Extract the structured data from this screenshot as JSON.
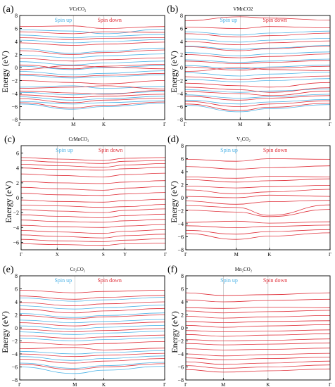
{
  "figure": {
    "ylabel": "Energy (eV)",
    "colors": {
      "spin_up": "#4db3e6",
      "spin_down": "#e0303a",
      "axis": "#000000",
      "kline": "#b0b0b0"
    }
  },
  "chart_data": [
    {
      "type": "line",
      "panel_label": "(a)",
      "title": "VCrCO₂",
      "ylabel": "Energy (eV)",
      "ylim": [
        -8,
        8
      ],
      "yticks": [
        8,
        6,
        4,
        2,
        0,
        -2,
        -4,
        -6,
        -8
      ],
      "kpath": [
        "Γ",
        "M",
        "K",
        "Γ"
      ],
      "kpos": [
        0,
        0.37,
        0.58,
        1
      ],
      "series": [
        {
          "name": "Spin up",
          "color": "#4db3e6",
          "bands": [
            [
              5.8,
              5.6,
              5.2,
              5.9
            ],
            [
              5.0,
              4.6,
              4.8,
              5.1
            ],
            [
              4.2,
              3.8,
              4.0,
              4.3
            ],
            [
              2.9,
              2.2,
              2.5,
              3.0
            ],
            [
              1.9,
              1.5,
              1.8,
              2.1
            ],
            [
              0.9,
              0.4,
              0.7,
              1.0
            ],
            [
              0.2,
              -0.3,
              0.0,
              0.3
            ],
            [
              -0.6,
              -1.1,
              -0.9,
              -0.5
            ],
            [
              -1.2,
              -1.6,
              -1.4,
              -1.1
            ],
            [
              -3.0,
              -2.8,
              -3.2,
              -2.9
            ],
            [
              -3.8,
              -4.2,
              -4.0,
              -3.7
            ],
            [
              -4.5,
              -5.0,
              -4.8,
              -4.4
            ],
            [
              -5.2,
              -5.6,
              -5.4,
              -5.1
            ],
            [
              -5.6,
              -6.4,
              -6.0,
              -5.5
            ]
          ]
        },
        {
          "name": "Spin down",
          "color": "#e0303a",
          "bands": [
            [
              6.3,
              6.4,
              6.0,
              6.3
            ],
            [
              5.5,
              5.2,
              5.5,
              5.4
            ],
            [
              4.6,
              4.3,
              4.5,
              4.6
            ],
            [
              3.8,
              3.4,
              3.6,
              3.9
            ],
            [
              2.6,
              2.0,
              2.3,
              2.7
            ],
            [
              1.4,
              1.0,
              1.2,
              1.5
            ],
            [
              0.4,
              -0.2,
              0.2,
              0.5
            ],
            [
              -0.3,
              0.3,
              0.1,
              -0.2
            ],
            [
              -1.0,
              -1.4,
              -1.2,
              -0.9
            ],
            [
              -2.0,
              -2.3,
              -2.5,
              -2.0
            ],
            [
              -3.2,
              -3.0,
              -2.8,
              -3.3
            ],
            [
              -3.6,
              -3.9,
              -4.1,
              -3.5
            ],
            [
              -4.2,
              -4.6,
              -4.4,
              -4.1
            ],
            [
              -4.8,
              -5.4,
              -5.0,
              -4.7
            ],
            [
              -5.4,
              -6.2,
              -5.8,
              -5.3
            ]
          ]
        }
      ]
    },
    {
      "type": "line",
      "panel_label": "(b)",
      "title": "VMnCO2",
      "ylabel": "Energy (eV)",
      "ylim": [
        -8,
        8
      ],
      "yticks": [
        8,
        6,
        4,
        2,
        0,
        -2,
        -4,
        -6,
        -8
      ],
      "kpath": [
        "Γ",
        "M",
        "K",
        "Γ"
      ],
      "kpos": [
        0,
        0.38,
        0.58,
        1
      ],
      "series": [
        {
          "name": "Spin up",
          "color": "#4db3e6",
          "bands": [
            [
              5.5,
              5.0,
              5.3,
              5.6
            ],
            [
              4.4,
              3.9,
              4.2,
              4.5
            ],
            [
              3.3,
              2.8,
              3.0,
              3.4
            ],
            [
              2.3,
              1.8,
              2.1,
              2.4
            ],
            [
              1.2,
              0.8,
              1.0,
              1.3
            ],
            [
              0.3,
              -0.2,
              0.1,
              0.4
            ],
            [
              -0.8,
              -1.3,
              -1.0,
              -0.7
            ],
            [
              -1.8,
              -2.2,
              -2.0,
              -1.7
            ],
            [
              -3.4,
              -3.8,
              -3.6,
              -3.3
            ],
            [
              -4.2,
              -4.7,
              -4.5,
              -4.1
            ],
            [
              -5.0,
              -5.6,
              -5.3,
              -4.9
            ],
            [
              -5.8,
              -6.8,
              -6.3,
              -5.7
            ]
          ]
        },
        {
          "name": "Spin down",
          "color": "#e0303a",
          "bands": [
            [
              7.2,
              7.8,
              7.6,
              7.3
            ],
            [
              6.2,
              6.0,
              6.3,
              6.1
            ],
            [
              5.2,
              4.7,
              4.9,
              5.3
            ],
            [
              4.0,
              3.5,
              3.8,
              4.1
            ],
            [
              3.2,
              2.6,
              2.9,
              3.3
            ],
            [
              2.0,
              1.5,
              1.7,
              2.1
            ],
            [
              1.0,
              0.6,
              0.8,
              1.1
            ],
            [
              0.1,
              -0.4,
              -0.1,
              0.2
            ],
            [
              -0.6,
              0.0,
              -0.3,
              -0.5
            ],
            [
              -1.4,
              -1.8,
              -1.6,
              -1.3
            ],
            [
              -2.4,
              -2.8,
              -3.0,
              -2.3
            ],
            [
              -3.0,
              -3.4,
              -3.8,
              -3.1
            ],
            [
              -3.7,
              -4.0,
              -4.3,
              -3.6
            ],
            [
              -4.4,
              -5.0,
              -4.7,
              -4.3
            ],
            [
              -5.2,
              -6.0,
              -5.6,
              -5.1
            ],
            [
              -5.6,
              -6.6,
              -6.1,
              -5.5
            ]
          ]
        }
      ]
    },
    {
      "type": "line",
      "panel_label": "(c)",
      "title": "CrMnCO₂",
      "ylabel": "Energy (eV)",
      "ylim": [
        -7,
        7
      ],
      "yticks": [
        6,
        4,
        2,
        0,
        -2,
        -4,
        -6
      ],
      "kpath": [
        "Γ",
        "X",
        "S",
        "Y",
        "Γ"
      ],
      "kpos": [
        0,
        0.25,
        0.57,
        0.72,
        1
      ],
      "series": [
        {
          "name": "Spin up",
          "color": "#4db3e6",
          "bands": []
        },
        {
          "name": "Spin down",
          "color": "#e0303a",
          "bands": [
            [
              5.4,
              5.2,
              5.0,
              5.3,
              5.4
            ],
            [
              5.0,
              4.8,
              4.6,
              4.9,
              5.0
            ],
            [
              4.5,
              4.3,
              4.1,
              4.4,
              4.6
            ],
            [
              4.0,
              3.8,
              3.7,
              3.9,
              4.1
            ],
            [
              3.2,
              3.0,
              2.8,
              3.1,
              3.3
            ],
            [
              2.2,
              2.0,
              1.9,
              2.1,
              2.3
            ],
            [
              1.4,
              1.2,
              1.0,
              1.3,
              1.5
            ],
            [
              0.6,
              0.4,
              0.3,
              0.5,
              0.7
            ],
            [
              -0.3,
              -0.5,
              -0.6,
              -0.4,
              -0.2
            ],
            [
              -1.0,
              -1.1,
              -1.3,
              -1.2,
              -0.9
            ],
            [
              -1.6,
              -1.8,
              -2.0,
              -1.7,
              -1.5
            ],
            [
              -2.3,
              -2.5,
              -2.7,
              -2.4,
              -2.2
            ],
            [
              -3.0,
              -3.2,
              -3.3,
              -3.1,
              -2.9
            ],
            [
              -3.7,
              -3.9,
              -4.0,
              -3.8,
              -3.6
            ],
            [
              -4.4,
              -4.6,
              -4.8,
              -4.5,
              -4.3
            ],
            [
              -5.0,
              -5.2,
              -5.4,
              -5.1,
              -4.9
            ],
            [
              -5.6,
              -5.8,
              -5.9,
              -5.7,
              -5.5
            ],
            [
              -6.2,
              -6.3,
              -6.4,
              -6.2,
              -6.1
            ]
          ]
        }
      ]
    },
    {
      "type": "line",
      "panel_label": "(d)",
      "title": "V₂CO₂",
      "ylabel": "Energy (eV)",
      "ylim": [
        -8,
        8
      ],
      "yticks": [
        8,
        6,
        4,
        2,
        0,
        -2,
        -4,
        -6,
        -8
      ],
      "kpath": [
        "Γ",
        "M",
        "K",
        "Γ"
      ],
      "kpos": [
        0,
        0.35,
        0.58,
        1
      ],
      "series": [
        {
          "name": "Spin up",
          "color": "#4db3e6",
          "bands": []
        },
        {
          "name": "Spin down",
          "color": "#e0303a",
          "bands": [
            [
              5.9,
              5.6,
              6.0,
              5.9
            ],
            [
              4.8,
              4.4,
              4.6,
              4.9
            ],
            [
              3.2,
              3.0,
              3.3,
              3.2
            ],
            [
              2.8,
              2.4,
              2.6,
              2.9
            ],
            [
              1.8,
              1.5,
              1.7,
              1.9
            ],
            [
              1.2,
              0.6,
              0.9,
              1.3
            ],
            [
              0.2,
              0.0,
              0.4,
              0.2
            ],
            [
              -0.5,
              -1.0,
              -0.6,
              -0.4
            ],
            [
              -1.2,
              -1.5,
              -2.7,
              -1.1
            ],
            [
              -1.9,
              -2.2,
              -2.9,
              -1.8
            ],
            [
              -3.8,
              -3.6,
              -3.9,
              -3.7
            ],
            [
              -4.3,
              -4.6,
              -4.4,
              -4.2
            ],
            [
              -5.0,
              -5.6,
              -5.2,
              -4.9
            ],
            [
              -5.5,
              -6.4,
              -5.9,
              -5.4
            ]
          ]
        }
      ]
    },
    {
      "type": "line",
      "panel_label": "(e)",
      "title": "Cr₂CO₂",
      "ylabel": "Energy (eV)",
      "ylim": [
        -8,
        8
      ],
      "yticks": [
        8,
        6,
        4,
        2,
        0,
        -2,
        -4,
        -6,
        -8
      ],
      "kpath": [
        "Γ",
        "M",
        "K",
        "Γ"
      ],
      "kpos": [
        0,
        0.38,
        0.58,
        1
      ],
      "series": [
        {
          "name": "Spin up",
          "color": "#4db3e6",
          "bands": [
            [
              4.6,
              4.1,
              4.3,
              4.7
            ],
            [
              3.4,
              2.9,
              3.1,
              3.5
            ],
            [
              2.2,
              1.6,
              1.9,
              2.3
            ],
            [
              1.2,
              0.8,
              1.0,
              1.3
            ],
            [
              0.3,
              -0.2,
              0.1,
              0.4
            ],
            [
              -0.6,
              -1.0,
              -0.8,
              -0.5
            ],
            [
              -1.6,
              -2.0,
              -1.8,
              -1.5
            ],
            [
              -3.6,
              -4.0,
              -3.8,
              -3.5
            ],
            [
              -4.4,
              -5.0,
              -4.7,
              -4.3
            ],
            [
              -5.4,
              -6.2,
              -5.8,
              -5.3
            ],
            [
              -6.0,
              -7.0,
              -6.5,
              -5.9
            ]
          ]
        },
        {
          "name": "Spin down",
          "color": "#e0303a",
          "bands": [
            [
              5.8,
              5.4,
              5.6,
              5.8
            ],
            [
              4.9,
              4.4,
              4.7,
              5.0
            ],
            [
              3.9,
              3.4,
              3.7,
              4.0
            ],
            [
              2.9,
              2.3,
              2.6,
              3.0
            ],
            [
              1.9,
              1.4,
              1.7,
              2.0
            ],
            [
              0.8,
              0.3,
              0.6,
              0.9
            ],
            [
              -0.2,
              -0.6,
              -0.4,
              -0.1
            ],
            [
              -1.2,
              -1.6,
              -1.4,
              -1.1
            ],
            [
              -2.2,
              -2.6,
              -2.4,
              -2.1
            ],
            [
              -3.2,
              -3.0,
              -3.4,
              -3.1
            ],
            [
              -4.0,
              -4.4,
              -4.2,
              -3.9
            ],
            [
              -4.8,
              -5.4,
              -5.1,
              -4.7
            ],
            [
              -5.6,
              -6.4,
              -6.0,
              -5.5
            ]
          ]
        }
      ]
    },
    {
      "type": "line",
      "panel_label": "(f)",
      "title": "Mn₂CO₂",
      "ylabel": "Energy (eV)",
      "ylim": [
        -8,
        8
      ],
      "yticks": [
        8,
        6,
        4,
        2,
        0,
        -2,
        -4,
        -6,
        -8
      ],
      "kpath": [
        "Γ",
        "M",
        "K",
        "Γ"
      ],
      "kpos": [
        0,
        0.26,
        0.57,
        1
      ],
      "series": [
        {
          "name": "Spin up",
          "color": "#4db3e6",
          "bands": []
        },
        {
          "name": "Spin down",
          "color": "#e0303a",
          "bands": [
            [
              5.4,
              5.0,
              5.1,
              5.4
            ],
            [
              4.3,
              4.0,
              4.2,
              4.4
            ],
            [
              3.1,
              3.0,
              3.2,
              3.1
            ],
            [
              2.6,
              2.3,
              2.5,
              2.7
            ],
            [
              1.8,
              1.5,
              1.7,
              1.9
            ],
            [
              1.0,
              0.8,
              1.0,
              1.1
            ],
            [
              0.4,
              0.1,
              0.3,
              0.5
            ],
            [
              -0.4,
              -0.6,
              -0.5,
              -0.3
            ],
            [
              -1.0,
              -1.3,
              -1.1,
              -0.9
            ],
            [
              -1.8,
              -2.0,
              -1.9,
              -1.7
            ],
            [
              -2.4,
              -2.6,
              -2.5,
              -2.3
            ],
            [
              -3.2,
              -3.4,
              -3.3,
              -3.1
            ],
            [
              -4.0,
              -4.3,
              -4.1,
              -3.9
            ],
            [
              -4.6,
              -4.9,
              -4.7,
              -4.5
            ],
            [
              -5.2,
              -5.6,
              -5.4,
              -5.1
            ],
            [
              -5.8,
              -6.2,
              -6.0,
              -5.7
            ],
            [
              -6.4,
              -6.8,
              -6.6,
              -6.3
            ]
          ]
        }
      ]
    }
  ]
}
